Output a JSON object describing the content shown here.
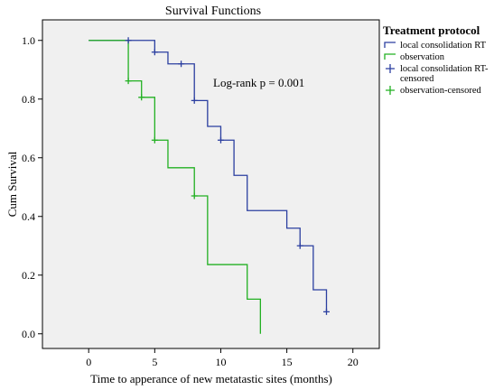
{
  "chart_data": {
    "type": "line",
    "title": "Survival Functions",
    "xlabel": "Time to apperance of new metatastic sites (months)",
    "ylabel": "Cum Survival",
    "xlim": [
      -3.5,
      22
    ],
    "ylim": [
      -0.05,
      1.07
    ],
    "x_ticks": [
      0,
      5,
      10,
      15,
      20
    ],
    "y_ticks": [
      0.0,
      0.2,
      0.4,
      0.6,
      0.8,
      1.0
    ],
    "x_tick_labels": [
      "0",
      "5",
      "10",
      "15",
      "20"
    ],
    "y_tick_labels": [
      "0.0",
      "0.2",
      "0.4",
      "0.6",
      "0.8",
      "1.0"
    ],
    "grid": false,
    "background_color": "#f0f0f0",
    "legend_title": "Treatment protocol",
    "legend_placement": "right, outside",
    "annotation": "Log-rank p = 0.001",
    "series": [
      {
        "name": "local consolidation RT",
        "color": "#2b3fa0",
        "steps": [
          [
            0,
            1.0
          ],
          [
            5,
            0.96
          ],
          [
            6,
            0.92
          ],
          [
            8,
            0.795
          ],
          [
            9,
            0.707
          ],
          [
            10,
            0.66
          ],
          [
            11,
            0.54
          ],
          [
            12,
            0.42
          ],
          [
            15,
            0.36
          ],
          [
            16,
            0.3
          ],
          [
            17,
            0.15
          ],
          [
            18,
            0.075
          ]
        ]
      },
      {
        "name": "observation",
        "color": "#22b022",
        "steps": [
          [
            0,
            1.0
          ],
          [
            3,
            0.862
          ],
          [
            4,
            0.806
          ],
          [
            5,
            0.66
          ],
          [
            6,
            0.566
          ],
          [
            8,
            0.47
          ],
          [
            9,
            0.236
          ],
          [
            12,
            0.118
          ],
          [
            13,
            0.0
          ]
        ]
      }
    ],
    "censored": [
      {
        "name": "local consolidation RT-censored",
        "color": "#2b3fa0",
        "points": [
          [
            3,
            1.0
          ],
          [
            5,
            0.96
          ],
          [
            7,
            0.92
          ],
          [
            8,
            0.795
          ],
          [
            10,
            0.66
          ],
          [
            16,
            0.3
          ],
          [
            18,
            0.075
          ]
        ]
      },
      {
        "name": "observation-censored",
        "color": "#22b022",
        "points": [
          [
            3,
            0.862
          ],
          [
            4,
            0.806
          ],
          [
            5,
            0.66
          ],
          [
            8,
            0.47
          ]
        ]
      }
    ],
    "legend": [
      {
        "label": "local consolidation RT",
        "label_lines": [
          "local consolidation RT"
        ],
        "color": "#2b3fa0",
        "marker": "line"
      },
      {
        "label": "observation",
        "label_lines": [
          "observation"
        ],
        "color": "#22b022",
        "marker": "line"
      },
      {
        "label": "local consolidation RT-censored",
        "label_lines": [
          "local consolidation RT-",
          "censored"
        ],
        "color": "#2b3fa0",
        "marker": "plus"
      },
      {
        "label": "observation-censored",
        "label_lines": [
          "observation-censored"
        ],
        "color": "#22b022",
        "marker": "plus"
      }
    ]
  }
}
